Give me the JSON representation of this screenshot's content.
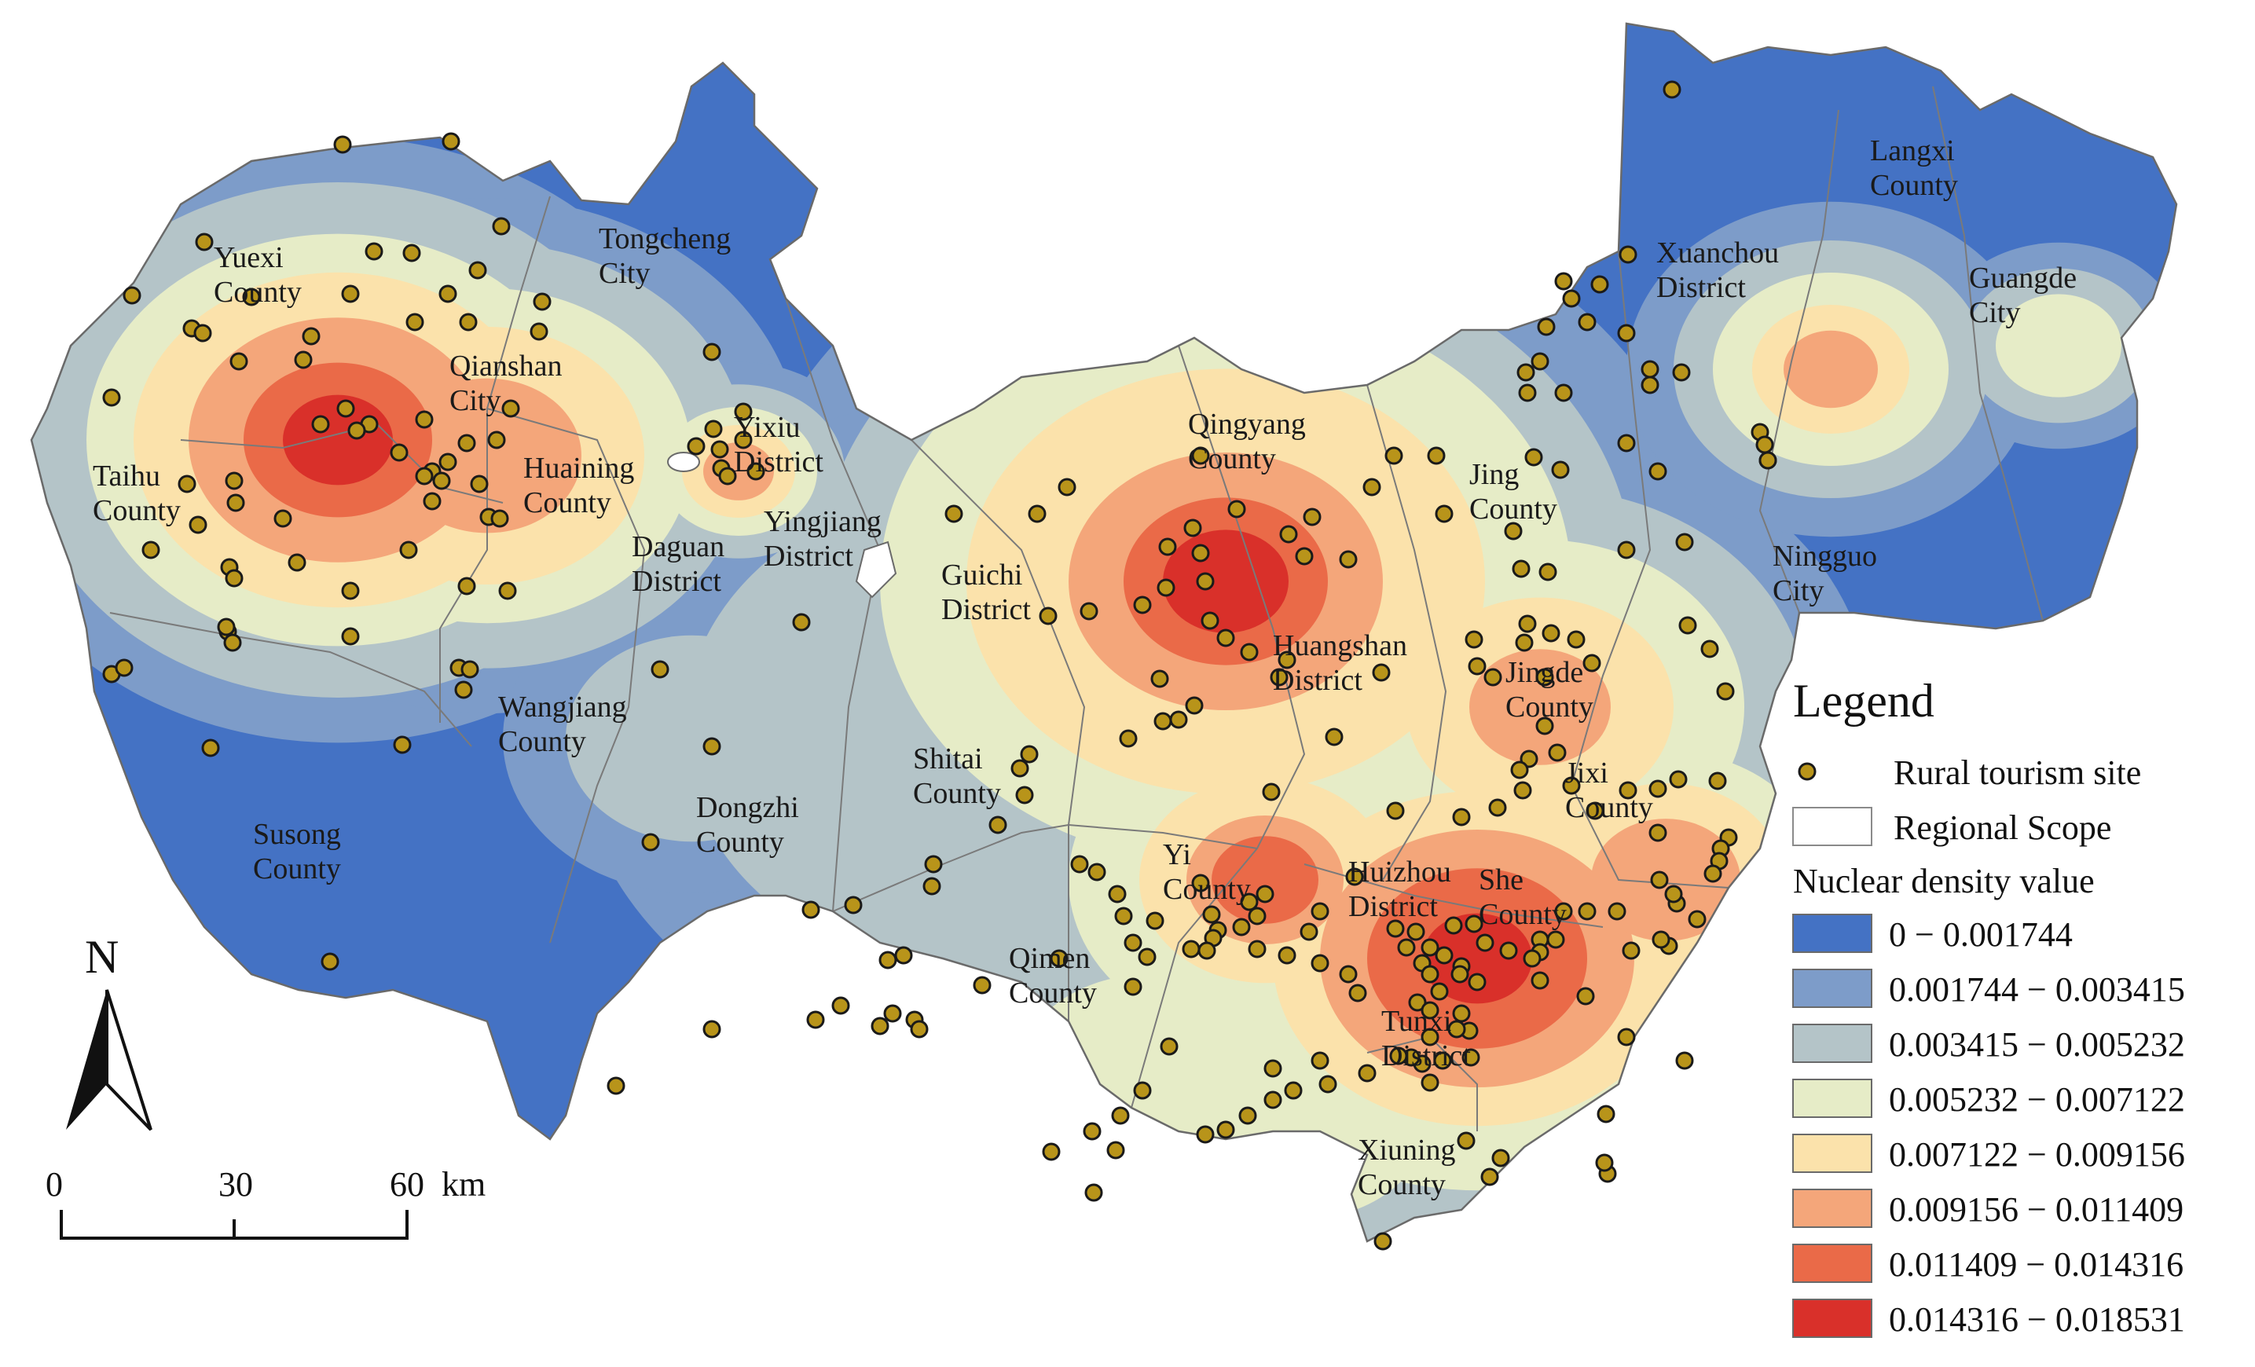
{
  "colors": {
    "class0": "#4472c4",
    "class1": "#7d9cc9",
    "class2": "#b4c4c8",
    "class3": "#e6ecc7",
    "class4": "#fbe2ab",
    "class5": "#f4a67a",
    "class6": "#ea6a48",
    "class7": "#d9302a",
    "site": "#b8941a",
    "border": "#7a7a7a"
  },
  "regions": [
    {
      "id": "yuexi",
      "lines": [
        "Yuexi",
        "County"
      ]
    },
    {
      "id": "tongcheng",
      "lines": [
        "Tongcheng",
        "City"
      ]
    },
    {
      "id": "qianshan",
      "lines": [
        "Qianshan",
        "City"
      ]
    },
    {
      "id": "taihu",
      "lines": [
        "Taihu",
        "County"
      ]
    },
    {
      "id": "huaining",
      "lines": [
        "Huaining",
        "County"
      ]
    },
    {
      "id": "yixiu",
      "lines": [
        "Yixiu",
        "District"
      ]
    },
    {
      "id": "yingjiang",
      "lines": [
        "Yingjiang",
        "District"
      ]
    },
    {
      "id": "daguan",
      "lines": [
        "Daguan",
        "District"
      ]
    },
    {
      "id": "wangjiang",
      "lines": [
        "Wangjiang",
        "County"
      ]
    },
    {
      "id": "susong",
      "lines": [
        "Susong",
        "County"
      ]
    },
    {
      "id": "dongzhi",
      "lines": [
        "Dongzhi",
        "County"
      ]
    },
    {
      "id": "guichi",
      "lines": [
        "Guichi",
        "District"
      ]
    },
    {
      "id": "qingyang",
      "lines": [
        "Qingyang",
        "County"
      ]
    },
    {
      "id": "shitai",
      "lines": [
        "Shitai",
        "County"
      ]
    },
    {
      "id": "huangshan",
      "lines": [
        "Huangshan",
        "District"
      ]
    },
    {
      "id": "jing",
      "lines": [
        "Jing",
        "County"
      ]
    },
    {
      "id": "jingde",
      "lines": [
        "Jingde",
        "County"
      ]
    },
    {
      "id": "jixi",
      "lines": [
        "Jixi",
        "County"
      ]
    },
    {
      "id": "langxi",
      "lines": [
        "Langxi",
        "County"
      ]
    },
    {
      "id": "xuanchou",
      "lines": [
        "Xuanchou",
        "District"
      ]
    },
    {
      "id": "guangde",
      "lines": [
        "Guangde",
        "City"
      ]
    },
    {
      "id": "ningguo",
      "lines": [
        "Ningguo",
        "City"
      ]
    },
    {
      "id": "yi",
      "lines": [
        "Yi",
        "County"
      ]
    },
    {
      "id": "huizhou",
      "lines": [
        "Huizhou",
        "District"
      ]
    },
    {
      "id": "she",
      "lines": [
        "She",
        "County"
      ]
    },
    {
      "id": "qimen",
      "lines": [
        "Qimen",
        "County"
      ]
    },
    {
      "id": "tunxi",
      "lines": [
        "Tunxi",
        "District"
      ]
    },
    {
      "id": "xiuning",
      "lines": [
        "Xiuning",
        "County"
      ]
    }
  ],
  "legend": {
    "title": "Legend",
    "site_label": "Rural tourism site",
    "scope_label": "Regional Scope",
    "density_label": "Nuclear density value",
    "classes": [
      "0 − 0.001744",
      "0.001744 − 0.003415",
      "0.003415 − 0.005232",
      "0.005232 − 0.007122",
      "0.007122 − 0.009156",
      "0.009156 − 0.011409",
      "0.011409 − 0.014316",
      "0.014316 − 0.018531"
    ]
  },
  "north_arrow": {
    "label": "N"
  },
  "scale_bar": {
    "ticks": [
      "0",
      "30",
      "60"
    ],
    "unit": "km"
  }
}
